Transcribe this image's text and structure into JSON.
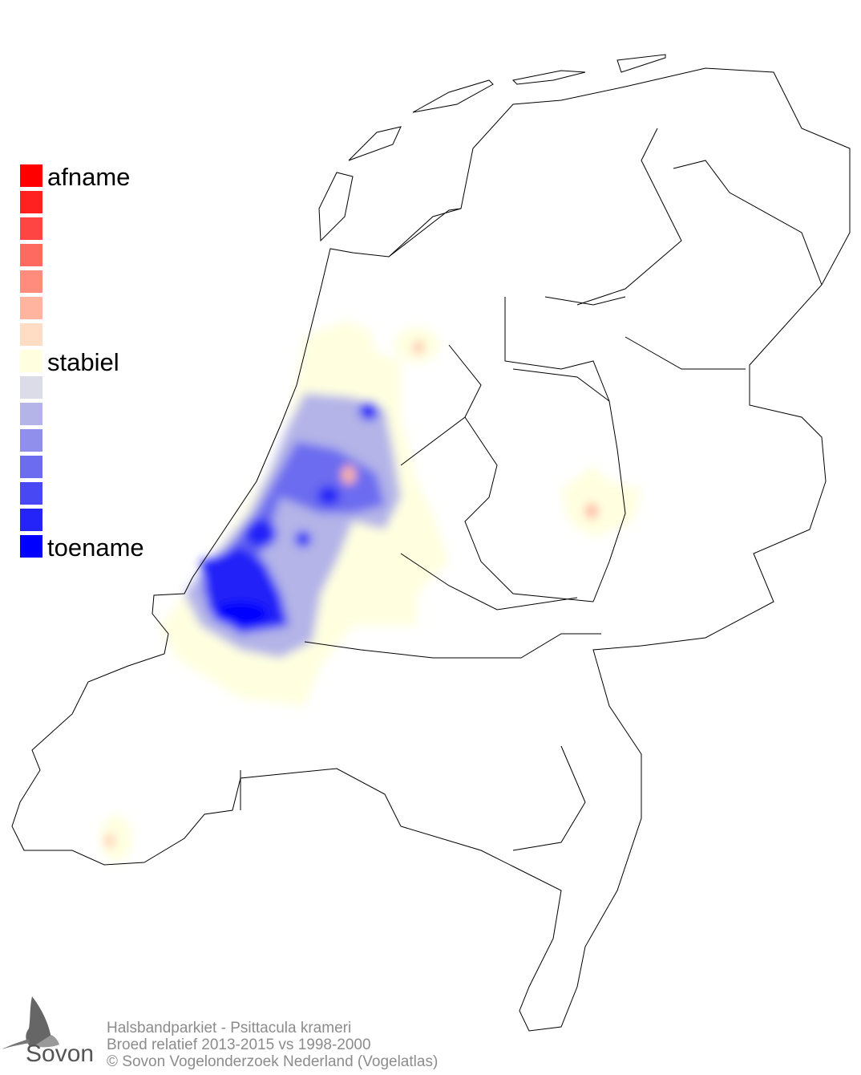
{
  "legend": {
    "items": [
      {
        "color": "#ff0000",
        "label": "afname"
      },
      {
        "color": "#ff2020",
        "label": ""
      },
      {
        "color": "#ff4444",
        "label": ""
      },
      {
        "color": "#ff6a60",
        "label": ""
      },
      {
        "color": "#ff8c7c",
        "label": ""
      },
      {
        "color": "#ffb4a0",
        "label": ""
      },
      {
        "color": "#ffdcc4",
        "label": ""
      },
      {
        "color": "#ffffe0",
        "label": "stabiel"
      },
      {
        "color": "#dcdce8",
        "label": ""
      },
      {
        "color": "#b4b4e8",
        "label": ""
      },
      {
        "color": "#9090ec",
        "label": ""
      },
      {
        "color": "#6c6cf0",
        "label": ""
      },
      {
        "color": "#4848f4",
        "label": ""
      },
      {
        "color": "#2424f8",
        "label": ""
      },
      {
        "color": "#0000ff",
        "label": "toename"
      }
    ]
  },
  "footer": {
    "line1": "Halsbandparkiet - Psittacula krameri",
    "line2": "Broed relatief 2013-2015 vs 1998-2000",
    "line3": "© Sovon Vogelonderzoek Nederland (Vogelatlas)"
  },
  "logo": {
    "text": "Sovon"
  }
}
